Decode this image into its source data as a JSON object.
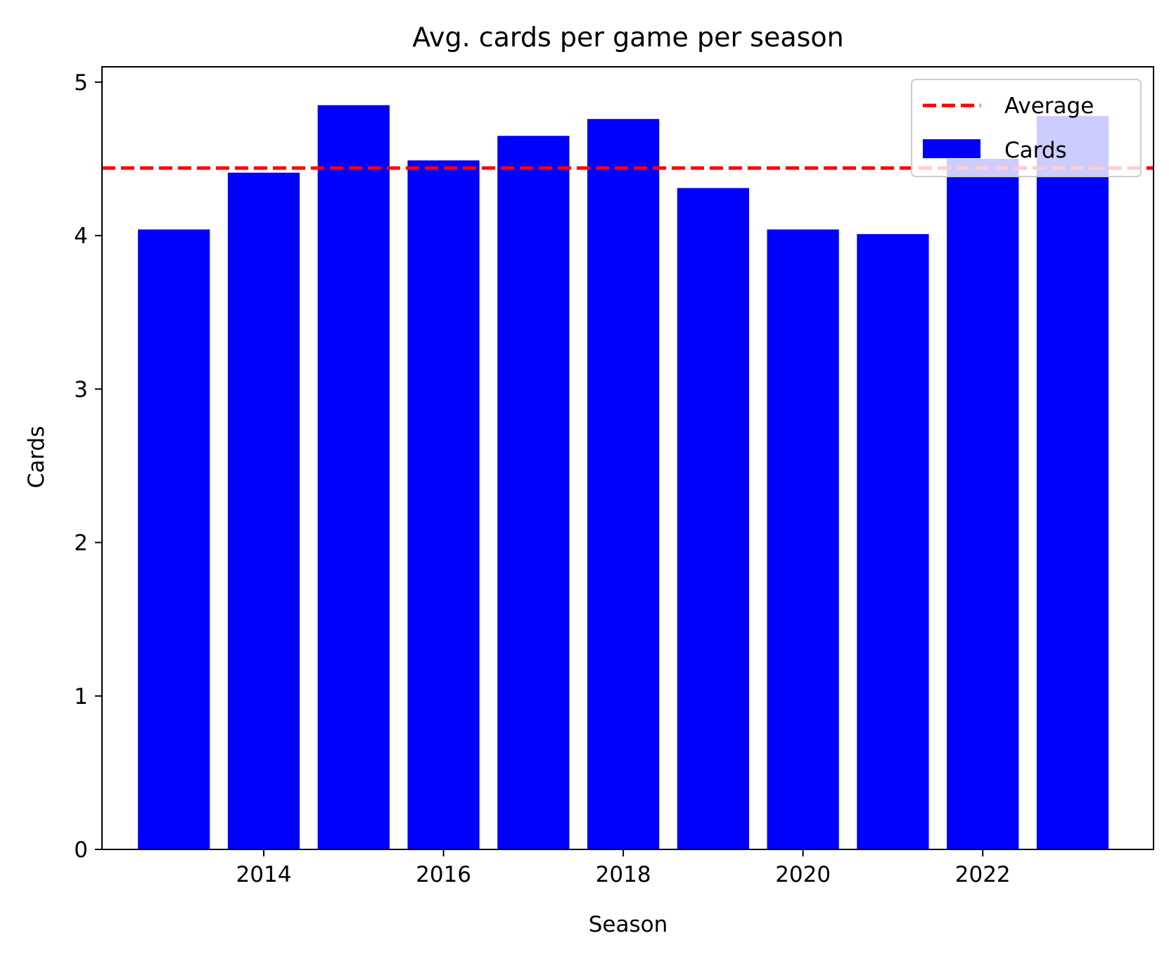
{
  "chart_data": {
    "type": "bar",
    "title": "Avg. cards per game per season",
    "xlabel": "Season",
    "ylabel": "Cards",
    "x": [
      2013,
      2014,
      2015,
      2016,
      2017,
      2018,
      2019,
      2020,
      2021,
      2022,
      2023
    ],
    "values": [
      4.04,
      4.41,
      4.85,
      4.49,
      4.65,
      4.76,
      4.31,
      4.04,
      4.01,
      4.5,
      4.78
    ],
    "bar_color": "#0000ff",
    "average": {
      "value": 4.44,
      "color": "#ff0000",
      "style": "dashed"
    },
    "xlim": [
      2012.2,
      2023.9
    ],
    "ylim": [
      0,
      5.1
    ],
    "xticks": [
      2014,
      2016,
      2018,
      2020,
      2022
    ],
    "yticks": [
      0,
      1,
      2,
      3,
      4,
      5
    ],
    "grid": false,
    "legend": {
      "placement": "top-right",
      "entries": [
        {
          "label": "Average",
          "kind": "line",
          "color": "#ff0000"
        },
        {
          "label": "Cards",
          "kind": "patch",
          "color": "#0000ff"
        }
      ]
    }
  }
}
